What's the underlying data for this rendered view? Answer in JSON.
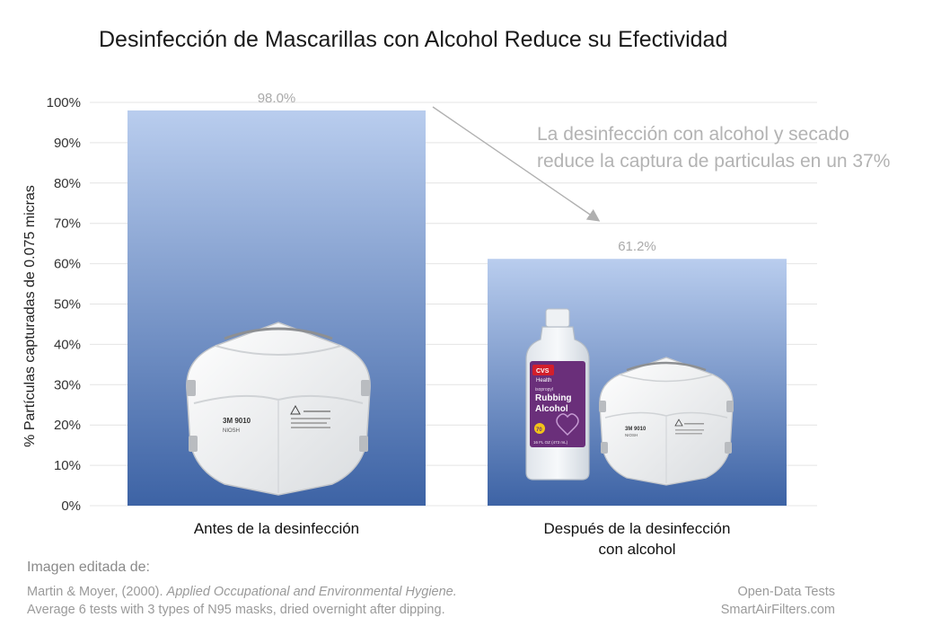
{
  "chart_data": {
    "type": "bar",
    "title": "Desinfección de Mascarillas con Alcohol Reduce su Efectividad",
    "ylabel": "% Partículas capturadas de 0.075 micras",
    "xlabel": "",
    "ylim": [
      0,
      100
    ],
    "yticks": [
      0,
      10,
      20,
      30,
      40,
      50,
      60,
      70,
      80,
      90,
      100
    ],
    "ytick_suffix": "%",
    "grid": true,
    "categories": [
      [
        "Antes de la desinfección"
      ],
      [
        "Después de la desinfección",
        "con alcohol"
      ]
    ],
    "values": [
      98.0,
      61.2
    ],
    "value_labels": [
      "98.0%",
      "61.2%"
    ],
    "bar_gradient": [
      "#b9cdee",
      "#3d63a5"
    ],
    "annotation": {
      "lines": [
        "La desinfección con alcohol y secado",
        "reduce la captura de particulas en un 37%"
      ]
    }
  },
  "bar_pictures": [
    "n95-mask",
    "rubbing-alcohol-bottle-and-n95-mask"
  ],
  "source": {
    "heading": "Imagen editada de:",
    "citation_authors": "Martin & Moyer, (2000). ",
    "citation_journal": "Applied Occupational and Environmental Hygiene.",
    "note": "Average 6 tests with 3 types of N95 masks, dried overnight after dipping.",
    "brand_line1": "Open-Data Tests",
    "brand_line2": "SmartAirFilters.com"
  },
  "bottle": {
    "brand": "CVS",
    "brand_sub": "Health",
    "small": "isopropyl",
    "product_line1": "Rubbing",
    "product_line2": "Alcohol",
    "badge": "70",
    "volume": "16 FL OZ (473 mL)"
  },
  "mask": {
    "model": "3M 9010",
    "cert": "NIOSH"
  }
}
